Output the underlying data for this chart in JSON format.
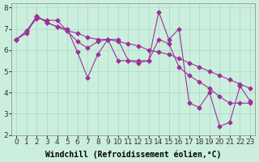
{
  "xlabel": "Windchill (Refroidissement éolien,°C)",
  "ylabel": "",
  "xlim": [
    -0.5,
    23.5
  ],
  "ylim": [
    2,
    8.2
  ],
  "yticks": [
    2,
    3,
    4,
    5,
    6,
    7,
    8
  ],
  "xticks": [
    0,
    1,
    2,
    3,
    4,
    5,
    6,
    7,
    8,
    9,
    10,
    11,
    12,
    13,
    14,
    15,
    16,
    17,
    18,
    19,
    20,
    21,
    22,
    23
  ],
  "background_color": "#cceedd",
  "grid_color": "#aaddcc",
  "line_color": "#993399",
  "series": [
    [
      6.5,
      6.9,
      7.6,
      7.3,
      7.1,
      7.0,
      5.9,
      4.7,
      5.8,
      6.5,
      5.5,
      5.5,
      5.5,
      5.5,
      7.8,
      6.5,
      7.0,
      3.5,
      3.3,
      4.0,
      2.4,
      2.6,
      4.3,
      3.6
    ],
    [
      6.5,
      6.9,
      7.5,
      7.4,
      7.4,
      6.9,
      6.4,
      6.1,
      6.4,
      6.5,
      6.5,
      5.5,
      5.4,
      5.5,
      6.5,
      6.3,
      5.2,
      4.8,
      4.5,
      4.2,
      3.8,
      3.5,
      3.5,
      3.5
    ],
    [
      6.5,
      6.8,
      7.6,
      7.3,
      7.1,
      6.9,
      6.8,
      6.6,
      6.5,
      6.5,
      6.4,
      6.3,
      6.2,
      6.0,
      5.9,
      5.8,
      5.6,
      5.4,
      5.2,
      5.0,
      4.8,
      4.6,
      4.4,
      4.2
    ]
  ],
  "tick_fontsize": 6.5,
  "label_fontsize": 7
}
